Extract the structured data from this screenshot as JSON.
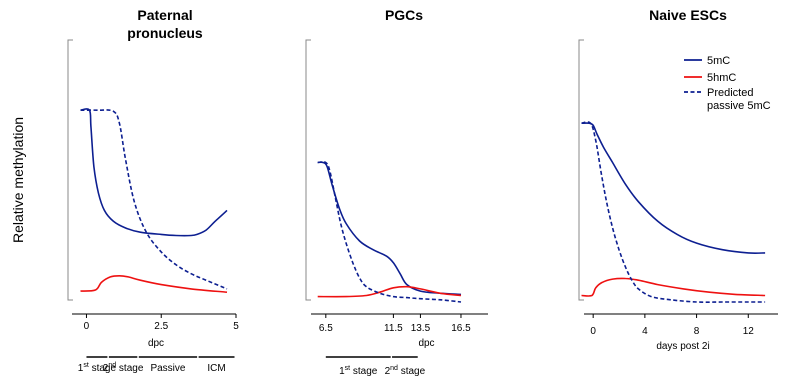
{
  "ylabel": "Relative methylation",
  "colors": {
    "mC": "#0d1f91",
    "hmC": "#ee1111",
    "axis": "#888888"
  },
  "legend": [
    {
      "label": "5mC",
      "style": "solid",
      "color": "#0d1f91"
    },
    {
      "label": "5hmC",
      "style": "solid",
      "color": "#ee1111"
    },
    {
      "label": [
        "Predicted",
        "passive 5mC"
      ],
      "style": "dashed",
      "color": "#0d1f91"
    }
  ],
  "chart_data": [
    {
      "type": "line",
      "title": [
        "Paternal",
        "pronucleus"
      ],
      "xlabel": "dpc",
      "x_ticks": [
        0,
        2.5,
        5
      ],
      "x_tick_labels": [
        "0",
        "2.5",
        "5"
      ],
      "xlim": [
        -0.35,
        5
      ],
      "ylim": [
        0,
        1
      ],
      "series": [
        {
          "name": "5mC",
          "style": "solid",
          "color": "#0d1f91",
          "x": [
            -0.2,
            0.1,
            0.15,
            0.25,
            0.4,
            0.6,
            0.9,
            1.3,
            1.8,
            2.5,
            3.0,
            3.5,
            3.7,
            4.0,
            4.3,
            4.7
          ],
          "y": [
            0.88,
            0.88,
            0.8,
            0.62,
            0.5,
            0.42,
            0.37,
            0.34,
            0.32,
            0.31,
            0.305,
            0.305,
            0.31,
            0.33,
            0.37,
            0.42
          ]
        },
        {
          "name": "5hmC",
          "style": "solid",
          "color": "#ee1111",
          "x": [
            -0.2,
            0.3,
            0.5,
            0.8,
            1.1,
            1.4,
            1.8,
            2.5,
            3.5,
            4.7
          ],
          "y": [
            0.05,
            0.055,
            0.09,
            0.115,
            0.12,
            0.115,
            0.1,
            0.08,
            0.06,
            0.045
          ]
        },
        {
          "name": "Predicted passive 5mC",
          "style": "dashed",
          "color": "#0d1f91",
          "x": [
            -0.2,
            0.4,
            0.9,
            1.1,
            1.3,
            1.6,
            2.0,
            2.5,
            3.0,
            3.5,
            4.0,
            4.7
          ],
          "y": [
            0.88,
            0.88,
            0.875,
            0.82,
            0.66,
            0.46,
            0.32,
            0.23,
            0.17,
            0.13,
            0.1,
            0.06
          ]
        }
      ],
      "stages": [
        {
          "label": "1",
          "sup": "st",
          "rest": " stage",
          "x": [
            0,
            0.7
          ]
        },
        {
          "label": "2",
          "sup": "nd",
          "rest": " stage",
          "x": [
            0.75,
            1.7
          ]
        },
        {
          "label": "Passive",
          "x": [
            1.75,
            3.7
          ]
        },
        {
          "label": "ICM",
          "x": [
            3.75,
            4.95
          ]
        }
      ]
    },
    {
      "type": "line",
      "title": [
        "PGCs"
      ],
      "xlabel": "dpc",
      "x_ticks": [
        6.5,
        11.5,
        13.5,
        16.5
      ],
      "x_tick_labels": [
        "6.5",
        "11.5",
        "13.5",
        "16.5"
      ],
      "xlim": [
        5.7,
        18.5
      ],
      "ylim": [
        0,
        1
      ],
      "series": [
        {
          "name": "5mC",
          "style": "solid",
          "color": "#0d1f91",
          "x": [
            5.9,
            6.3,
            6.6,
            7.0,
            7.5,
            8.0,
            9.0,
            10.0,
            11.0,
            11.5,
            12.0,
            12.5,
            13.5,
            15.0,
            16.5
          ],
          "y": [
            0.64,
            0.64,
            0.62,
            0.53,
            0.43,
            0.36,
            0.28,
            0.24,
            0.21,
            0.18,
            0.13,
            0.08,
            0.05,
            0.04,
            0.035
          ]
        },
        {
          "name": "5hmC",
          "style": "solid",
          "color": "#ee1111",
          "x": [
            5.9,
            8.0,
            9.5,
            10.5,
            11.5,
            12.5,
            13.5,
            15.0,
            16.5
          ],
          "y": [
            0.025,
            0.025,
            0.03,
            0.045,
            0.065,
            0.07,
            0.06,
            0.04,
            0.03
          ]
        },
        {
          "name": "Predicted passive 5mC",
          "style": "dashed",
          "color": "#0d1f91",
          "x": [
            5.9,
            6.5,
            6.8,
            7.2,
            7.6,
            8.0,
            8.5,
            9.0,
            9.5,
            10.5,
            11.5,
            12.5,
            13.5,
            15.0,
            16.5
          ],
          "y": [
            0.64,
            0.64,
            0.6,
            0.48,
            0.36,
            0.27,
            0.18,
            0.11,
            0.07,
            0.04,
            0.025,
            0.02,
            0.015,
            0.01,
            0.0
          ]
        }
      ],
      "stages": [
        {
          "label": "1",
          "sup": "st",
          "rest": " stage",
          "x": [
            6.5,
            11.3
          ]
        },
        {
          "label": "2",
          "sup": "nd",
          "rest": " stage",
          "x": [
            11.4,
            13.3
          ]
        }
      ]
    },
    {
      "type": "line",
      "title": [
        "Naive ESCs"
      ],
      "xlabel": "days post 2i",
      "x_ticks": [
        0,
        4,
        8,
        12
      ],
      "x_tick_labels": [
        "0",
        "4",
        "8",
        "12"
      ],
      "xlim": [
        -0.4,
        14.3
      ],
      "ylim": [
        0,
        1
      ],
      "series": [
        {
          "name": "5mC",
          "style": "solid",
          "color": "#0d1f91",
          "x": [
            -0.9,
            -0.3,
            0.0,
            0.3,
            0.8,
            1.5,
            2.5,
            3.5,
            5.0,
            6.5,
            8.0,
            10.0,
            12.0,
            13.3
          ],
          "y": [
            0.82,
            0.82,
            0.81,
            0.77,
            0.71,
            0.64,
            0.54,
            0.46,
            0.37,
            0.31,
            0.27,
            0.24,
            0.225,
            0.225
          ]
        },
        {
          "name": "5hmC",
          "style": "solid",
          "color": "#ee1111",
          "x": [
            -0.9,
            -0.1,
            0.2,
            0.7,
            1.5,
            2.5,
            3.5,
            5.0,
            7.0,
            9.0,
            11.0,
            13.3
          ],
          "y": [
            0.03,
            0.03,
            0.065,
            0.09,
            0.105,
            0.108,
            0.1,
            0.08,
            0.06,
            0.045,
            0.035,
            0.03
          ]
        },
        {
          "name": "Predicted passive 5mC",
          "style": "dashed",
          "color": "#0d1f91",
          "x": [
            -0.9,
            -0.2,
            0.2,
            0.6,
            1.0,
            1.5,
            2.0,
            2.5,
            3.0,
            3.5,
            4.5,
            6.0,
            8.0,
            10.0,
            12.0,
            13.3
          ],
          "y": [
            0.82,
            0.82,
            0.74,
            0.6,
            0.47,
            0.34,
            0.24,
            0.16,
            0.1,
            0.06,
            0.025,
            0.01,
            0.0,
            0.0,
            0.0,
            0.0
          ]
        }
      ]
    }
  ]
}
